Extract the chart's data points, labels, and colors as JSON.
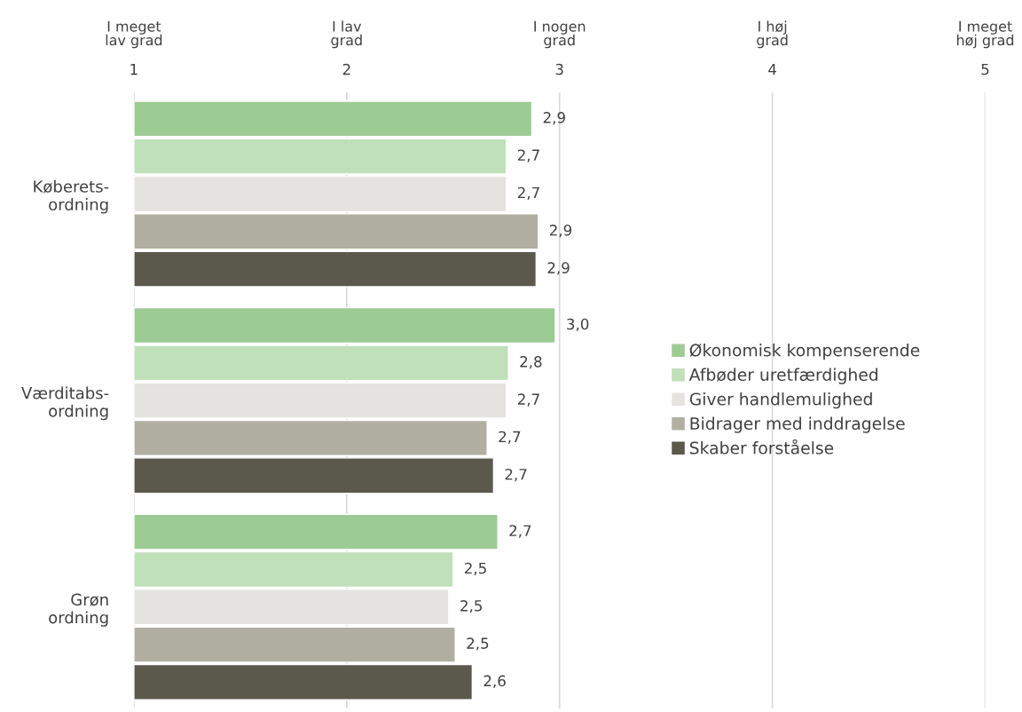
{
  "chart_data": {
    "type": "bar",
    "orientation": "horizontal",
    "categories": [
      "Køberets-\nordning",
      "Værditabs-\nordning",
      "Grøn\nordning"
    ],
    "series": [
      {
        "name": "Økonomisk kompenserende",
        "color": "#9dcb94",
        "values": [
          2.87,
          2.98,
          2.71
        ],
        "value_labels": [
          "2,9",
          "3,0",
          "2,7"
        ]
      },
      {
        "name": "Afbøder uretfærdighed",
        "color": "#bfe0b9",
        "values": [
          2.75,
          2.76,
          2.5
        ],
        "value_labels": [
          "2,7",
          "2,8",
          "2,5"
        ]
      },
      {
        "name": "Giver handlemulighed",
        "color": "#e4e3e0",
        "values": [
          2.75,
          2.75,
          2.48
        ],
        "value_labels": [
          "2,7",
          "2,7",
          "2,5"
        ]
      },
      {
        "name": "Bidrager med inddragelse",
        "color": "#b0afa1",
        "values": [
          2.9,
          2.66,
          2.51
        ],
        "value_labels": [
          "2,9",
          "2,7",
          "2,5"
        ]
      },
      {
        "name": "Skaber forståelse",
        "color": "#5b594c",
        "values": [
          2.89,
          2.69,
          2.59
        ],
        "value_labels": [
          "2,9",
          "2,7",
          "2,6"
        ]
      }
    ],
    "xlim": [
      1,
      5
    ],
    "xticks": [
      1,
      2,
      3,
      4,
      5
    ],
    "annotations": [
      "I meget\nlav grad",
      "I lav\ngrad",
      "I nogen\ngrad",
      "I høj\ngrad",
      "I meget\nhøj grad"
    ],
    "grid": "x",
    "legend": "right"
  }
}
